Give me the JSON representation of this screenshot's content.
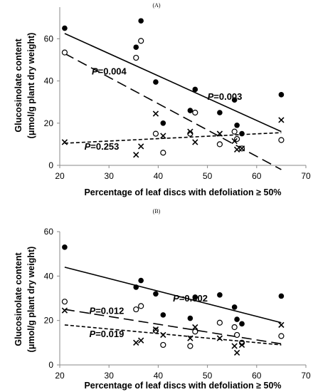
{
  "chart_data": [
    {
      "panel": "(A)",
      "type": "scatter",
      "xlabel": "Percentage of leaf discs with defoliation ≥ 50%",
      "ylabel": "Glucosinolate content",
      "ylabel_unit": "(μmol/g  plant dry weight)",
      "xlim": [
        20,
        70
      ],
      "ylim": [
        0,
        75
      ],
      "xticks": [
        "20",
        "30",
        "40",
        "50",
        "60",
        "70"
      ],
      "yticks": [
        "0",
        "20",
        "40",
        "60"
      ],
      "series": [
        {
          "marker": "filled-circle",
          "trend": {
            "style": "solid",
            "x": [
              21,
              65
            ],
            "y": [
              62.5,
              16
            ],
            "label": "P=0.003",
            "label_xy": [
              50,
              31
            ]
          },
          "points": [
            [
              21,
              65
            ],
            [
              35.5,
              56
            ],
            [
              36.5,
              68.5
            ],
            [
              39.5,
              39.5
            ],
            [
              41,
              20
            ],
            [
              46.5,
              26
            ],
            [
              47.5,
              36
            ],
            [
              52.5,
              25
            ],
            [
              55.5,
              31
            ],
            [
              56,
              19
            ],
            [
              57,
              15
            ],
            [
              65,
              33.5
            ]
          ]
        },
        {
          "marker": "open-circle",
          "trend": {
            "style": "long-dash",
            "x": [
              21,
              65
            ],
            "y": [
              53,
              -2
            ],
            "label": "P=0.004",
            "label_xy": [
              26.5,
              43
            ]
          },
          "points": [
            [
              21,
              53.5
            ],
            [
              35.5,
              51
            ],
            [
              36.5,
              59
            ],
            [
              39.5,
              15
            ],
            [
              41,
              6
            ],
            [
              46.5,
              15
            ],
            [
              47.5,
              25
            ],
            [
              52.5,
              10
            ],
            [
              55.5,
              16
            ],
            [
              56,
              12.5
            ],
            [
              57,
              8
            ],
            [
              65,
              12
            ]
          ]
        },
        {
          "marker": "cross",
          "trend": {
            "style": "short-dash",
            "x": [
              21,
              65
            ],
            "y": [
              10.5,
              15.5
            ],
            "label": "P=0.253",
            "label_xy": [
              25,
              7.5
            ]
          },
          "points": [
            [
              21,
              11
            ],
            [
              35.5,
              5
            ],
            [
              36.5,
              9
            ],
            [
              39.5,
              24.5
            ],
            [
              41,
              14
            ],
            [
              46.5,
              16
            ],
            [
              47.5,
              11
            ],
            [
              52.5,
              15
            ],
            [
              55.5,
              11.5
            ],
            [
              56,
              7.5
            ],
            [
              57,
              8
            ],
            [
              65,
              21.5
            ]
          ]
        }
      ]
    },
    {
      "panel": "(B)",
      "type": "scatter",
      "xlabel": "Percentage of leaf discs with defoliation ≥ 50%",
      "ylabel": "Glucosinolate content",
      "ylabel_unit": "(μmol/g  plant dry weight)",
      "xlim": [
        20,
        70
      ],
      "ylim": [
        0,
        60
      ],
      "xticks": [
        "20",
        "30",
        "40",
        "50",
        "60",
        "70"
      ],
      "yticks": [
        "0",
        "20",
        "40",
        "60"
      ],
      "series": [
        {
          "marker": "filled-circle",
          "trend": {
            "style": "solid",
            "x": [
              21,
              65
            ],
            "y": [
              44,
              19
            ],
            "label": "P=0.002",
            "label_xy": [
              43,
              28.5
            ]
          },
          "points": [
            [
              21,
              53
            ],
            [
              35.5,
              35
            ],
            [
              36.5,
              38
            ],
            [
              39.5,
              32
            ],
            [
              41,
              22.5
            ],
            [
              46.5,
              21
            ],
            [
              47.5,
              30.5
            ],
            [
              52.5,
              31.5
            ],
            [
              55.5,
              26
            ],
            [
              56,
              20.5
            ],
            [
              57,
              18.5
            ],
            [
              65,
              31
            ]
          ]
        },
        {
          "marker": "open-circle",
          "trend": {
            "style": "long-dash",
            "x": [
              21,
              65
            ],
            "y": [
              25,
              9.5
            ],
            "label": "P=0.012",
            "label_xy": [
              26,
              23
            ]
          },
          "points": [
            [
              21,
              28.5
            ],
            [
              35.5,
              25
            ],
            [
              36.5,
              26.5
            ],
            [
              39.5,
              15.5
            ],
            [
              41,
              9
            ],
            [
              46.5,
              8.5
            ],
            [
              47.5,
              15
            ],
            [
              52.5,
              19
            ],
            [
              55.5,
              17
            ],
            [
              56,
              13.5
            ],
            [
              57,
              10
            ],
            [
              65,
              13
            ]
          ]
        },
        {
          "marker": "cross",
          "trend": {
            "style": "short-dash",
            "x": [
              21,
              65
            ],
            "y": [
              18,
              9
            ],
            "label": "P=0.019",
            "label_xy": [
              26,
              12.5
            ]
          },
          "points": [
            [
              21,
              24.5
            ],
            [
              35.5,
              10
            ],
            [
              36.5,
              11
            ],
            [
              39.5,
              16
            ],
            [
              41,
              13.5
            ],
            [
              46.5,
              12
            ],
            [
              47.5,
              17
            ],
            [
              52.5,
              12
            ],
            [
              55.5,
              8.5
            ],
            [
              56,
              5.5
            ],
            [
              57,
              9
            ],
            [
              65,
              18
            ]
          ]
        }
      ]
    }
  ]
}
